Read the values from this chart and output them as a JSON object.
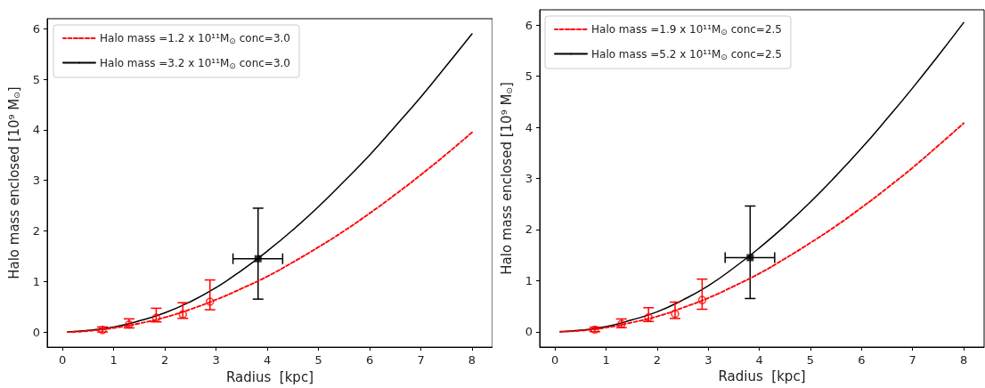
{
  "chart_data": [
    {
      "type": "line",
      "xlabel": "Radius  [kpc]",
      "ylabel": "Halo mass enclosed [10⁹ M$_{⊙}$]",
      "xlim": [
        -0.3,
        8.4
      ],
      "ylim": [
        -0.3,
        6.2
      ],
      "xticks": [
        0,
        1,
        2,
        3,
        4,
        5,
        6,
        7,
        8
      ],
      "yticks": [
        0,
        1,
        2,
        3,
        4,
        5,
        6
      ],
      "grid": false,
      "legend": "top left",
      "series": [
        {
          "name": "Halo mass =1.2 x 10¹¹M$_{⊙}$ conc=3.0",
          "color": "#ff0000",
          "line_style": "dashed",
          "marker": "none",
          "x": [
            0.1,
            0.5,
            1,
            1.5,
            2,
            2.5,
            3,
            3.5,
            4,
            4.5,
            5,
            5.5,
            6,
            6.5,
            7,
            7.5,
            8
          ],
          "values": [
            0,
            0.02,
            0.08,
            0.17,
            0.29,
            0.45,
            0.64,
            0.86,
            1.1,
            1.38,
            1.68,
            2.0,
            2.35,
            2.72,
            3.11,
            3.52,
            3.95
          ]
        },
        {
          "name": "Halo mass =3.2 x 10¹¹M$_{⊙}$ conc=3.0",
          "color": "#000000",
          "line_style": "solid",
          "marker": "none",
          "x": [
            0.1,
            0.5,
            1,
            1.5,
            2,
            2.5,
            3,
            3.5,
            4,
            4.5,
            5,
            5.5,
            6,
            6.5,
            7,
            7.5,
            8
          ],
          "values": [
            0,
            0.03,
            0.1,
            0.22,
            0.38,
            0.6,
            0.88,
            1.22,
            1.6,
            2.02,
            2.48,
            2.98,
            3.5,
            4.07,
            4.65,
            5.27,
            5.9
          ]
        },
        {
          "type": "scatter",
          "color": "#ff0000",
          "marker": "circle",
          "x": [
            0.78,
            1.3,
            1.83,
            2.35,
            2.88
          ],
          "values": [
            0.04,
            0.15,
            0.28,
            0.35,
            0.6
          ],
          "errors": [
            [
              0.0,
              0.1
            ],
            [
              0.08,
              0.26
            ],
            [
              0.2,
              0.47
            ],
            [
              0.27,
              0.58
            ],
            [
              0.44,
              1.03
            ]
          ]
        },
        {
          "type": "scatter",
          "color": "#000000",
          "marker": "square",
          "x": [
            3.82
          ],
          "values": [
            1.45
          ],
          "errors": [
            [
              0.65,
              2.45
            ]
          ],
          "xerrors": [
            [
              3.33,
              4.3
            ]
          ]
        }
      ]
    },
    {
      "type": "line",
      "xlabel": "Radius  [kpc]",
      "ylabel": "Halo mass enclosed [10⁹ M$_{⊙}$]",
      "xlim": [
        -0.3,
        8.4
      ],
      "ylim": [
        -0.3,
        6.3
      ],
      "xticks": [
        0,
        1,
        2,
        3,
        4,
        5,
        6,
        7,
        8
      ],
      "yticks": [
        0,
        1,
        2,
        3,
        4,
        5,
        6
      ],
      "grid": false,
      "legend": "top left",
      "series": [
        {
          "name": "Halo mass =1.9 x 10¹¹M$_{⊙}$ conc=2.5",
          "color": "#ff0000",
          "line_style": "dashed",
          "marker": "none",
          "x": [
            0.1,
            0.5,
            1,
            1.5,
            2,
            2.5,
            3,
            3.5,
            4,
            4.5,
            5,
            5.5,
            6,
            6.5,
            7,
            7.5,
            8
          ],
          "values": [
            0,
            0.02,
            0.08,
            0.18,
            0.3,
            0.47,
            0.66,
            0.89,
            1.14,
            1.43,
            1.74,
            2.07,
            2.43,
            2.81,
            3.21,
            3.64,
            4.08
          ]
        },
        {
          "name": "Halo mass =5.2 x 10¹¹M$_{⊙}$ conc=2.5",
          "color": "#000000",
          "line_style": "solid",
          "marker": "none",
          "x": [
            0.1,
            0.5,
            1,
            1.5,
            2,
            2.5,
            3,
            3.5,
            4,
            4.5,
            5,
            5.5,
            6,
            6.5,
            7,
            7.5,
            8
          ],
          "values": [
            0,
            0.03,
            0.1,
            0.23,
            0.39,
            0.62,
            0.9,
            1.25,
            1.64,
            2.07,
            2.54,
            3.05,
            3.59,
            4.17,
            4.77,
            5.4,
            6.05
          ]
        },
        {
          "type": "scatter",
          "color": "#ff0000",
          "marker": "circle",
          "x": [
            0.78,
            1.3,
            1.83,
            2.35,
            2.88
          ],
          "values": [
            0.04,
            0.15,
            0.28,
            0.35,
            0.62
          ],
          "errors": [
            [
              0.0,
              0.09
            ],
            [
              0.08,
              0.25
            ],
            [
              0.2,
              0.47
            ],
            [
              0.26,
              0.58
            ],
            [
              0.44,
              1.03
            ]
          ]
        },
        {
          "type": "scatter",
          "color": "#000000",
          "marker": "square",
          "x": [
            3.82
          ],
          "values": [
            1.45
          ],
          "errors": [
            [
              0.65,
              2.46
            ]
          ],
          "xerrors": [
            [
              3.33,
              4.3
            ]
          ]
        }
      ]
    }
  ]
}
